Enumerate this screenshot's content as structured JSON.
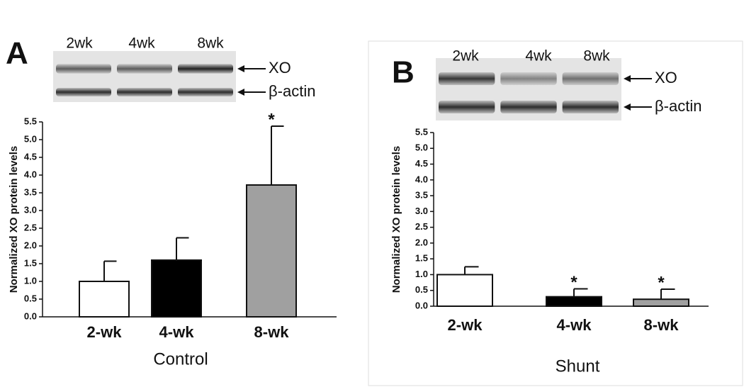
{
  "chart_data": [
    {
      "type": "bar",
      "panel_label": "A",
      "blot_lanes": [
        "2wk",
        "4wk",
        "8wk"
      ],
      "blot_rows": [
        "XO",
        "β-actin"
      ],
      "xlabel": "Control",
      "ylabel": "Normalized XO protein levels",
      "categories": [
        "2-wk",
        "4-wk",
        "8-wk"
      ],
      "values": [
        1.0,
        1.6,
        3.72
      ],
      "errors": [
        0.57,
        0.63,
        1.66
      ],
      "colors": [
        "#ffffff",
        "#000000",
        "#a0a0a0"
      ],
      "significance": [
        null,
        null,
        "*"
      ],
      "ylim": [
        0,
        5.5
      ],
      "yticks": [
        {
          "value": 0,
          "label": "0.0"
        },
        0.5,
        {
          "value": 1,
          "label": "1.0"
        },
        1.5,
        {
          "value": 2,
          "label": "2.0"
        },
        2.5,
        {
          "value": 3,
          "label": "3.0"
        },
        3.5,
        {
          "value": 4,
          "label": "4.0"
        },
        4.5,
        {
          "value": 5,
          "label": "5.0"
        },
        5.5
      ]
    },
    {
      "type": "bar",
      "panel_label": "B",
      "blot_lanes": [
        "2wk",
        "4wk",
        "8wk"
      ],
      "blot_rows": [
        "XO",
        "β-actin"
      ],
      "xlabel": "Shunt",
      "ylabel": "Normalized XO protein levels",
      "categories": [
        "2-wk",
        "4-wk",
        "8-wk"
      ],
      "values": [
        1.0,
        0.3,
        0.22
      ],
      "errors": [
        0.25,
        0.25,
        0.32
      ],
      "colors": [
        "#ffffff",
        "#000000",
        "#a0a0a0"
      ],
      "significance": [
        null,
        "*",
        "*"
      ],
      "ylim": [
        0,
        5.5
      ],
      "yticks": [
        {
          "value": 0,
          "label": "0.0"
        },
        0.5,
        {
          "value": 1,
          "label": "1.0"
        },
        1.5,
        {
          "value": 2,
          "label": "2.0"
        },
        2.5,
        {
          "value": 3,
          "label": "3.0"
        },
        3.5,
        {
          "value": 4,
          "label": "4.0"
        },
        4.5,
        {
          "value": 5,
          "label": "5.0"
        },
        5.5
      ]
    }
  ]
}
